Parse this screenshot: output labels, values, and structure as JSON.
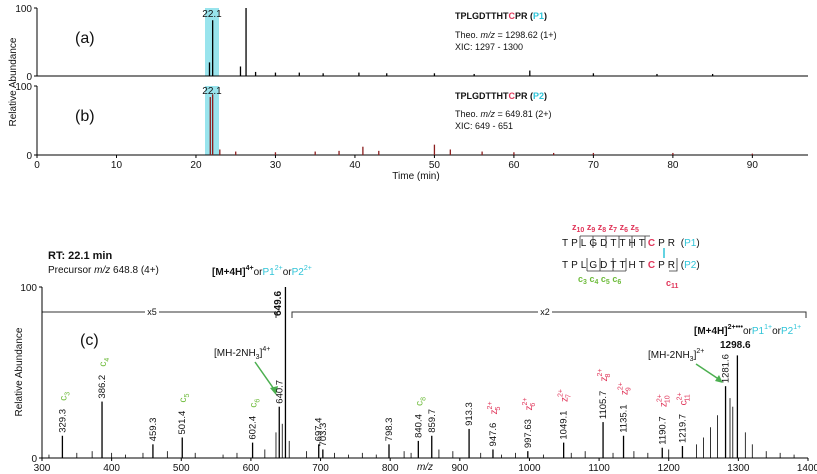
{
  "chart_data": [
    {
      "type": "stem",
      "panel_label": "(a)",
      "ylabel": "Relative Abundance",
      "peptide": [
        "TPLGDTTHT",
        "C",
        "PR (",
        "P1",
        ")"
      ],
      "theo": [
        "Theo. ",
        "m/z",
        " = 1298.62 (1+)"
      ],
      "xic": "XIC: 1297 - 1300",
      "x": [
        22.1,
        26.3,
        25.6,
        21.7,
        27.5,
        30,
        33,
        36,
        40.5,
        44,
        50,
        55,
        62,
        70,
        78,
        85
      ],
      "values": [
        82,
        100,
        14,
        20,
        6,
        5,
        5,
        4,
        5,
        4,
        4,
        3,
        8,
        4,
        3,
        3
      ],
      "color": "#000000",
      "xlim": [
        0,
        97
      ],
      "ylim": [
        0,
        100
      ],
      "yticks": [
        0,
        100
      ]
    },
    {
      "type": "stem",
      "panel_label": "(b)",
      "peptide": [
        "TPLGDTTHT",
        "C",
        "PR (",
        "P2",
        ")"
      ],
      "theo": [
        "Theo. ",
        "m/z",
        " = 649.81 (2+)"
      ],
      "xic": "XIC: 649 - 651",
      "x": [
        22.1,
        21.8,
        23,
        25,
        30,
        35,
        38,
        41,
        43,
        50,
        52,
        56,
        60,
        65,
        70,
        80,
        90
      ],
      "values": [
        88,
        84,
        8,
        5,
        4,
        5,
        6,
        12,
        6,
        15,
        8,
        5,
        4,
        3,
        3,
        3,
        2
      ],
      "color": "#8b1e1e",
      "xlim": [
        0,
        97
      ],
      "ylim": [
        0,
        100
      ],
      "yticks": [
        0,
        100
      ],
      "xticks": [
        0,
        10,
        20,
        30,
        40,
        50,
        60,
        70,
        80,
        90
      ],
      "xlabel": "Time (min)"
    },
    {
      "type": "stem",
      "panel_label": "(c)",
      "ylabel": "Relative Abundance",
      "xlabel": "m/z",
      "rt": "RT: 22.1 min",
      "precursor": [
        "Precursor ",
        "m/z",
        " 648.8 (4+)"
      ],
      "zoom": [
        "x5",
        "x2"
      ],
      "precursor_ion": [
        "[M+4H]",
        "4+",
        "or",
        "P1",
        "2+",
        "or",
        "P2",
        "2+"
      ],
      "loss_4": [
        "[MH-2NH",
        "3",
        "]",
        "4+"
      ],
      "charge_reduced": [
        "[M+4H]",
        "2+•••",
        "or",
        "P1",
        "1+",
        "or",
        "P2",
        "1+"
      ],
      "loss_2": [
        "[MH-2NH",
        "3",
        "]",
        "2+"
      ],
      "ions": [
        {
          "ion": "c",
          "sub": "3"
        },
        {
          "ion": "c",
          "sub": "4"
        },
        {
          "ion": "c",
          "sub": "5"
        },
        {
          "ion": "c",
          "sub": "6"
        },
        {
          "ion": "c",
          "sub": "8"
        },
        {
          "ion": "z",
          "sub": "5",
          "sup": "2+"
        },
        {
          "ion": "z",
          "sub": "6",
          "sup": "2+"
        },
        {
          "ion": "z",
          "sub": "7",
          "sup": "2+"
        },
        {
          "ion": "z",
          "sub": "8",
          "sup": "2+"
        },
        {
          "ion": "z",
          "sub": "9",
          "sup": "2+"
        },
        {
          "ion": "z",
          "sub": "10",
          "sup": "2+"
        },
        {
          "ion": "c",
          "sub": "11",
          "sup": "2+"
        }
      ],
      "z_ions": [
        {
          "ion": "z",
          "sub": "10"
        },
        {
          "ion": "z",
          "sub": "9"
        },
        {
          "ion": "z",
          "sub": "8"
        },
        {
          "ion": "z",
          "sub": "7"
        },
        {
          "ion": "z",
          "sub": "6"
        },
        {
          "ion": "z",
          "sub": "5"
        }
      ],
      "c_ions": [
        {
          "ion": "c",
          "sub": "3"
        },
        {
          "ion": "c",
          "sub": "4"
        },
        {
          "ion": "c",
          "sub": "5"
        },
        {
          "ion": "c",
          "sub": "6"
        },
        {
          "ion": "c",
          "sub": "11"
        }
      ],
      "sequence_p1": [
        "TPLGDTTHT",
        "C",
        "PR",
        " (",
        "P1",
        ")"
      ],
      "sequence_p2": [
        "TPLGDTTHT",
        "C",
        "PR",
        " (",
        "P2",
        ")"
      ],
      "x": [
        329.3,
        386.2,
        459.3,
        501.4,
        602.4,
        640.7,
        649.6,
        697.4,
        703.3,
        798.3,
        840.4,
        859.7,
        913.3,
        947.6,
        997.63,
        1049.1,
        1105.7,
        1135.1,
        1190.7,
        1219.7,
        1281.6,
        1298.6
      ],
      "values": [
        13,
        33,
        8,
        12,
        9,
        30,
        100,
        8,
        5,
        8,
        10,
        13,
        17,
        5,
        4,
        9,
        21,
        13,
        6,
        7,
        42,
        60
      ],
      "minor_x": [
        310,
        350,
        372,
        400,
        420,
        445,
        480,
        520,
        560,
        580,
        620,
        636,
        645,
        655,
        680,
        720,
        740,
        760,
        780,
        820,
        830,
        870,
        890,
        930,
        960,
        980,
        1020,
        1060,
        1080,
        1120,
        1150,
        1170,
        1200,
        1240,
        1250,
        1260,
        1270,
        1288,
        1292,
        1310,
        1320,
        1340,
        1360,
        1380
      ],
      "minor_values": [
        2,
        3,
        4,
        3,
        2,
        3,
        4,
        3,
        2,
        3,
        5,
        15,
        20,
        10,
        4,
        3,
        2,
        3,
        2,
        4,
        3,
        5,
        4,
        3,
        2,
        3,
        2,
        3,
        4,
        3,
        4,
        3,
        5,
        8,
        12,
        18,
        25,
        35,
        30,
        15,
        8,
        4,
        3,
        2
      ],
      "color": "#000000",
      "xlim": [
        300,
        1400
      ],
      "ylim": [
        0,
        100
      ],
      "yticks": [
        0,
        100
      ],
      "xticks": [
        300,
        400,
        500,
        600,
        700,
        800,
        900,
        1000,
        1100,
        1200,
        1300,
        1400
      ]
    }
  ]
}
